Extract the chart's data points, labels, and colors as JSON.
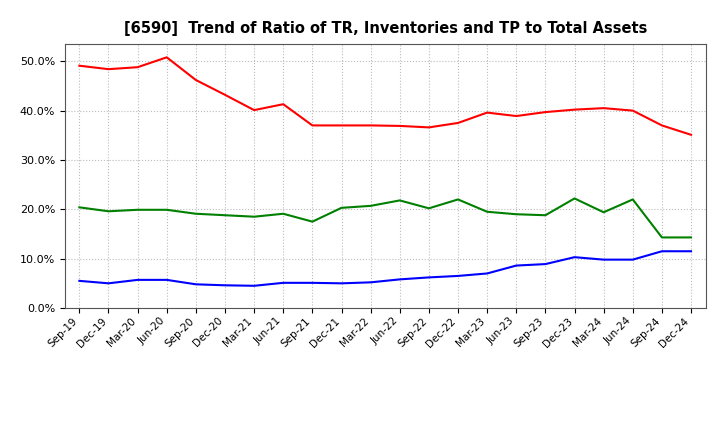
{
  "title": "[6590]  Trend of Ratio of TR, Inventories and TP to Total Assets",
  "x_labels": [
    "Sep-19",
    "Dec-19",
    "Mar-20",
    "Jun-20",
    "Sep-20",
    "Dec-20",
    "Mar-21",
    "Jun-21",
    "Sep-21",
    "Dec-21",
    "Mar-22",
    "Jun-22",
    "Sep-22",
    "Dec-22",
    "Mar-23",
    "Jun-23",
    "Sep-23",
    "Dec-23",
    "Mar-24",
    "Jun-24",
    "Sep-24",
    "Dec-24"
  ],
  "trade_receivables": [
    0.491,
    0.484,
    0.488,
    0.508,
    0.462,
    0.432,
    0.401,
    0.413,
    0.37,
    0.37,
    0.37,
    0.369,
    0.366,
    0.375,
    0.396,
    0.389,
    0.397,
    0.402,
    0.405,
    0.4,
    0.37,
    0.351
  ],
  "inventories": [
    0.055,
    0.05,
    0.057,
    0.057,
    0.048,
    0.046,
    0.045,
    0.051,
    0.051,
    0.05,
    0.052,
    0.058,
    0.062,
    0.065,
    0.07,
    0.086,
    0.089,
    0.103,
    0.098,
    0.098,
    0.115,
    0.115
  ],
  "trade_payables": [
    0.204,
    0.196,
    0.199,
    0.199,
    0.191,
    0.188,
    0.185,
    0.191,
    0.175,
    0.203,
    0.207,
    0.218,
    0.202,
    0.22,
    0.195,
    0.19,
    0.188,
    0.222,
    0.194,
    0.22,
    0.143,
    0.143
  ],
  "tr_color": "#FF0000",
  "inv_color": "#0000FF",
  "tp_color": "#008000",
  "ylim": [
    0.0,
    0.535
  ],
  "yticks": [
    0.0,
    0.1,
    0.2,
    0.3,
    0.4,
    0.5
  ],
  "background_color": "#FFFFFF",
  "grid_color": "#BBBBBB"
}
